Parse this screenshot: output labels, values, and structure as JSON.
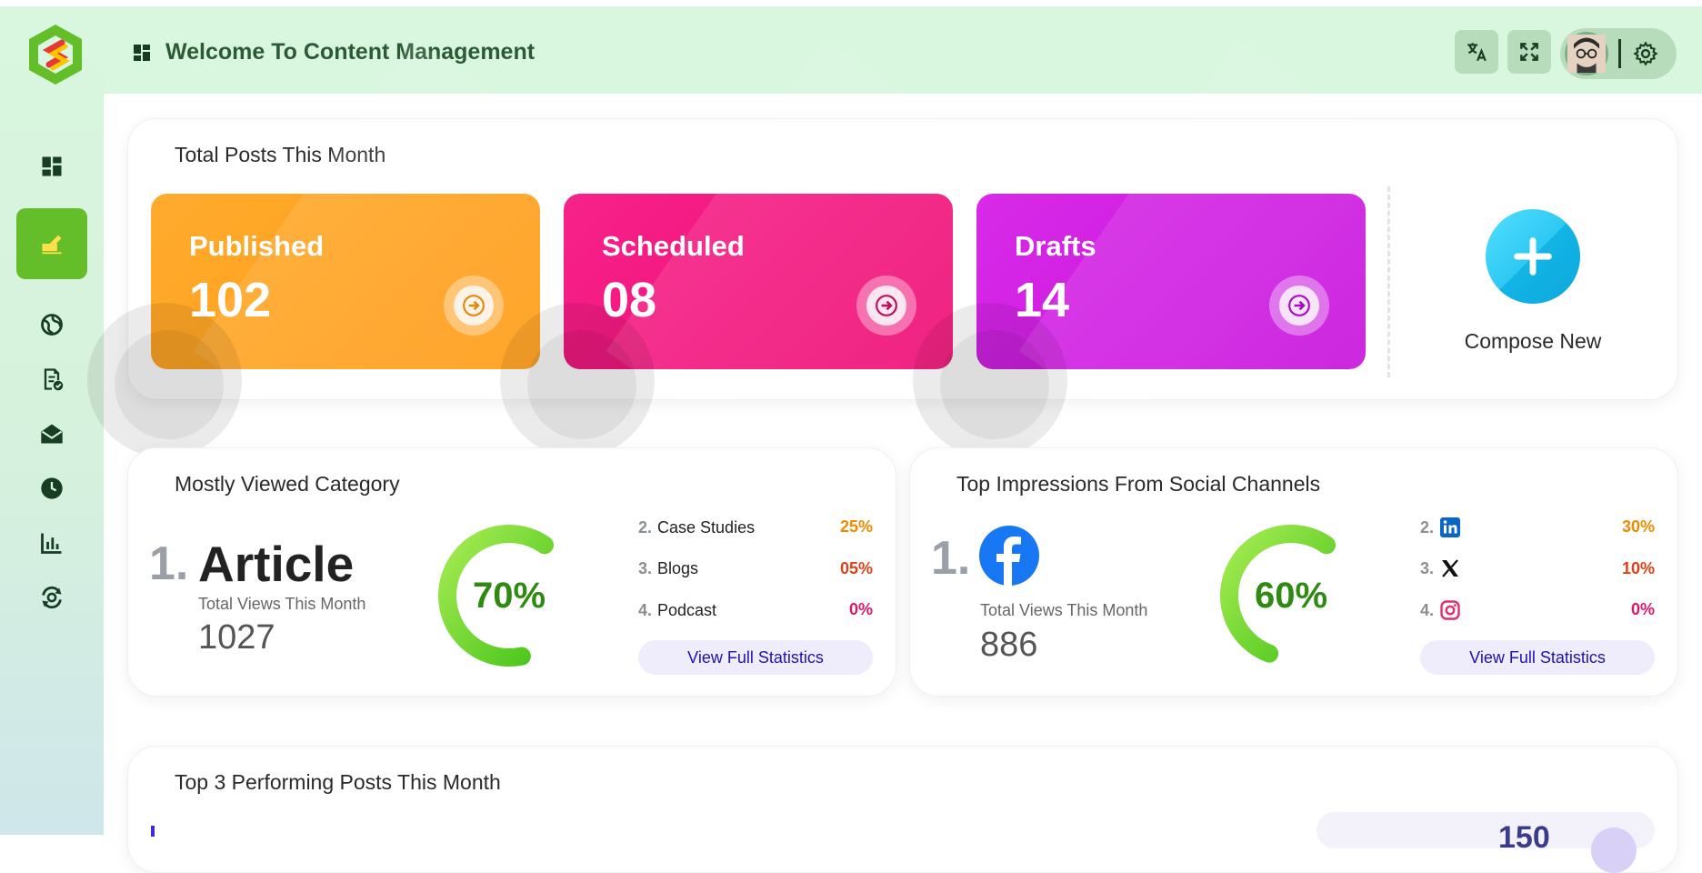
{
  "header": {
    "title": "Welcome To Content Management"
  },
  "sidebar": {
    "items": [
      {
        "name": "dashboard-icon"
      },
      {
        "name": "compose-icon",
        "active": true
      },
      {
        "name": "globe-icon"
      },
      {
        "name": "report-check-icon"
      },
      {
        "name": "mail-open-icon"
      },
      {
        "name": "clock-icon"
      },
      {
        "name": "bar-chart-icon"
      },
      {
        "name": "settings-sync-icon"
      }
    ]
  },
  "posts": {
    "title": "Total Posts This Month",
    "cards": [
      {
        "label": "Published",
        "value": "102",
        "color": "#ff9f1a"
      },
      {
        "label": "Scheduled",
        "value": "08",
        "color": "#f01a80"
      },
      {
        "label": "Drafts",
        "value": "14",
        "color": "#d21ae6"
      }
    ],
    "compose_label": "Compose New"
  },
  "category": {
    "title": "Mostly Viewed Category",
    "top_rank": "1.",
    "top_name": "Article",
    "views_label": "Total Views This Month",
    "views": "1027",
    "gauge_percent": 70,
    "gauge_label": "70%",
    "ranks": [
      {
        "num": "2.",
        "name": "Case Studies",
        "pct": "25%",
        "color": "#f08a00"
      },
      {
        "num": "3.",
        "name": "Blogs",
        "pct": "05%",
        "color": "#e0401a"
      },
      {
        "num": "4.",
        "name": "Podcast",
        "pct": "0%",
        "color": "#e0186a"
      }
    ],
    "button": "View Full Statistics"
  },
  "social": {
    "title": "Top Impressions From Social Channels",
    "top_rank": "1.",
    "top_icon": "facebook-logo",
    "views_label": "Total Views This Month",
    "views": "886",
    "gauge_percent": 60,
    "gauge_label": "60%",
    "ranks": [
      {
        "num": "2.",
        "icon": "linkedin-icon",
        "pct": "30%",
        "color": "#f08a00"
      },
      {
        "num": "3.",
        "icon": "x-icon",
        "pct": "10%",
        "color": "#e0401a"
      },
      {
        "num": "4.",
        "icon": "instagram-icon",
        "pct": "0%",
        "color": "#e0186a"
      }
    ],
    "button": "View Full Statistics"
  },
  "top_posts": {
    "title": "Top 3 Performing Posts This Month",
    "partial_number": "150"
  }
}
